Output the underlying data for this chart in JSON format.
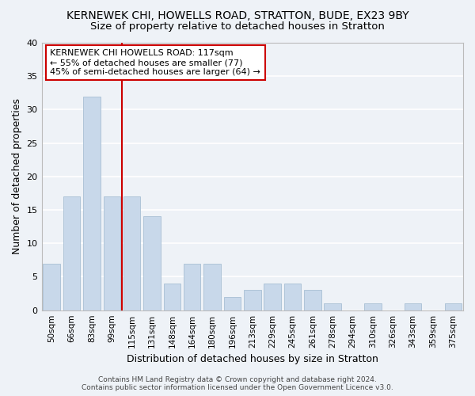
{
  "title": "KERNEWEK CHI, HOWELLS ROAD, STRATTON, BUDE, EX23 9BY",
  "subtitle": "Size of property relative to detached houses in Stratton",
  "xlabel": "Distribution of detached houses by size in Stratton",
  "ylabel": "Number of detached properties",
  "bar_color": "#c8d8ea",
  "bar_edge_color": "#a8c0d4",
  "categories": [
    "50sqm",
    "66sqm",
    "83sqm",
    "99sqm",
    "115sqm",
    "131sqm",
    "148sqm",
    "164sqm",
    "180sqm",
    "196sqm",
    "213sqm",
    "229sqm",
    "245sqm",
    "261sqm",
    "278sqm",
    "294sqm",
    "310sqm",
    "326sqm",
    "343sqm",
    "359sqm",
    "375sqm"
  ],
  "values": [
    7,
    17,
    32,
    17,
    17,
    14,
    4,
    7,
    7,
    2,
    3,
    4,
    4,
    3,
    1,
    0,
    1,
    0,
    1,
    0,
    1
  ],
  "ylim": [
    0,
    40
  ],
  "yticks": [
    0,
    5,
    10,
    15,
    20,
    25,
    30,
    35,
    40
  ],
  "vline_x_idx": 4,
  "vline_color": "#cc0000",
  "annotation_title": "KERNEWEK CHI HOWELLS ROAD: 117sqm",
  "annotation_line1": "← 55% of detached houses are smaller (77)",
  "annotation_line2": "45% of semi-detached houses are larger (64) →",
  "footer1": "Contains HM Land Registry data © Crown copyright and database right 2024.",
  "footer2": "Contains public sector information licensed under the Open Government Licence v3.0.",
  "background_color": "#eef2f7",
  "grid_color": "#ffffff",
  "title_fontsize": 10,
  "subtitle_fontsize": 9.5
}
